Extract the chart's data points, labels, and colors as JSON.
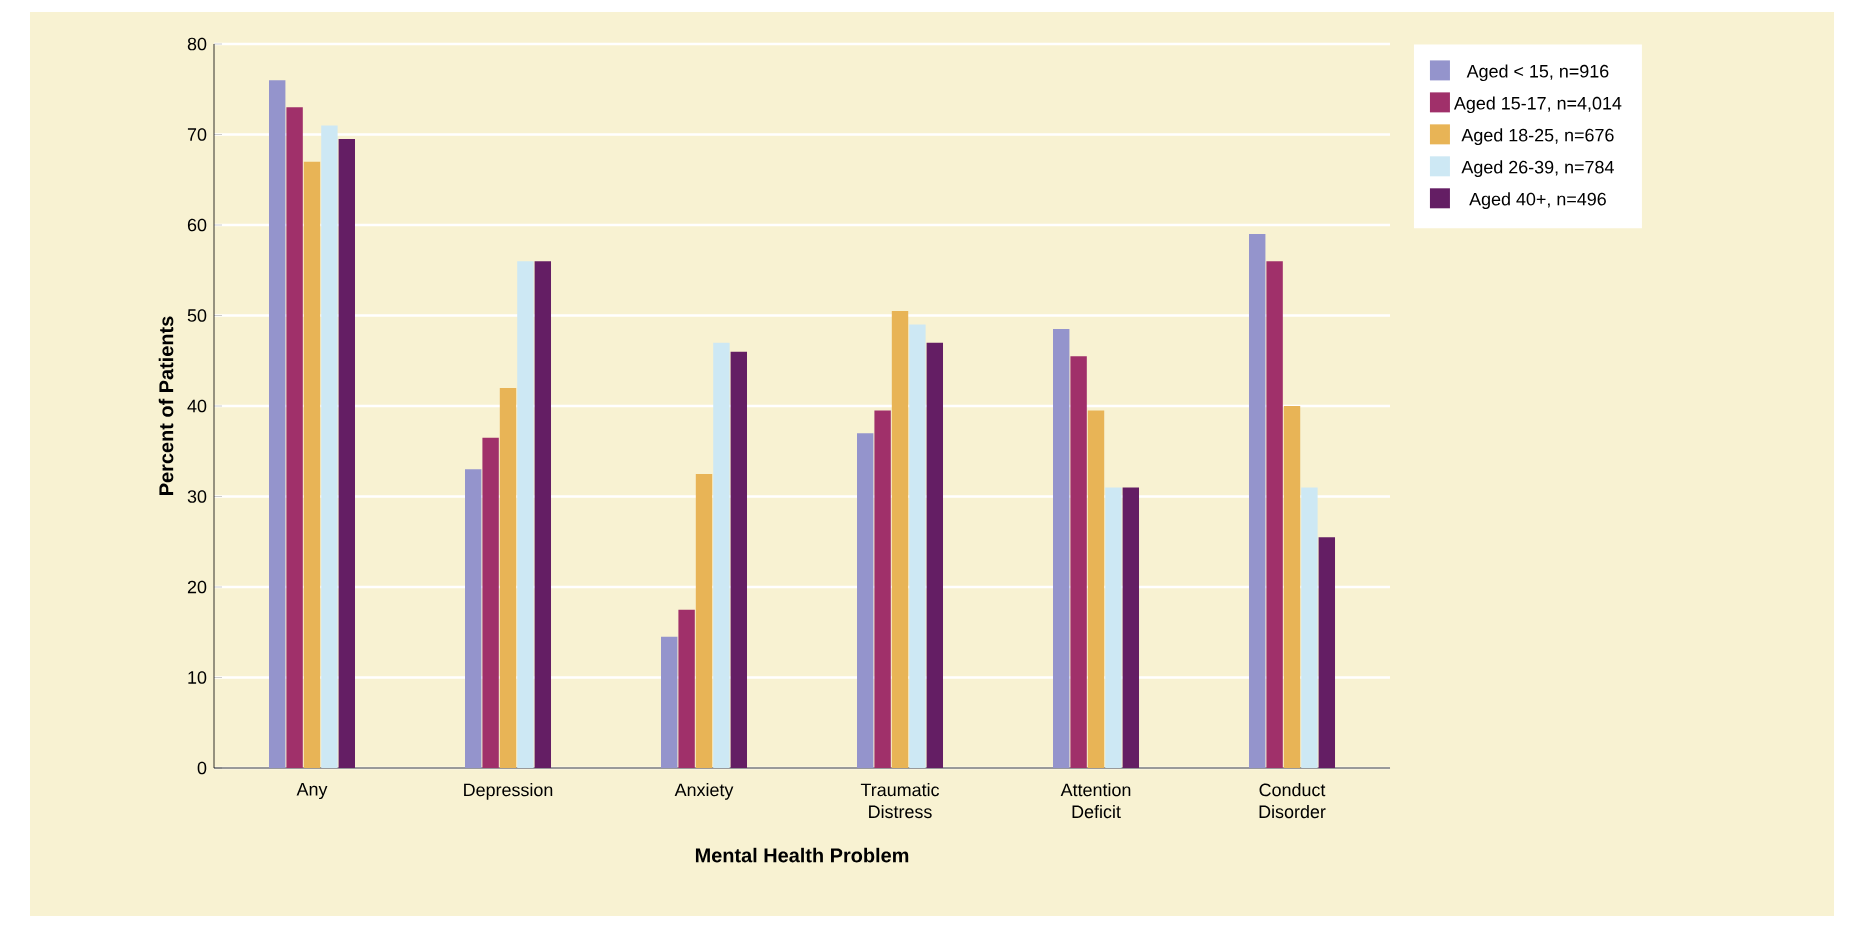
{
  "chart_data": {
    "type": "bar",
    "xlabel": "Mental Health Problem",
    "ylabel": "Percent of Patients",
    "categories": [
      "Any",
      "Depression",
      "Anxiety",
      "Traumatic Distress",
      "Attention Deficit",
      "Conduct Disorder"
    ],
    "series": [
      {
        "name": "Aged < 15, n=916",
        "color": "#9494cc",
        "values": [
          76,
          33,
          14.5,
          37,
          48.5,
          59
        ]
      },
      {
        "name": "Aged 15-17, n=4,014",
        "color": "#a0306a",
        "values": [
          73,
          36.5,
          17.5,
          39.5,
          45.5,
          56
        ]
      },
      {
        "name": "Aged 18-25, n=676",
        "color": "#e8b456",
        "values": [
          67,
          42,
          32.5,
          50.5,
          39.5,
          40
        ]
      },
      {
        "name": "Aged 26-39, n=784",
        "color": "#cde8f4",
        "values": [
          71,
          56,
          47,
          49,
          31,
          31
        ]
      },
      {
        "name": "Aged 40+, n=496",
        "color": "#641e64",
        "values": [
          69.5,
          56,
          46,
          47,
          31,
          25.5
        ]
      }
    ],
    "ylim": [
      0,
      80
    ],
    "yticks": [
      0,
      10,
      20,
      30,
      40,
      50,
      60,
      70,
      80
    ],
    "grid": "y",
    "legend": "top right"
  }
}
